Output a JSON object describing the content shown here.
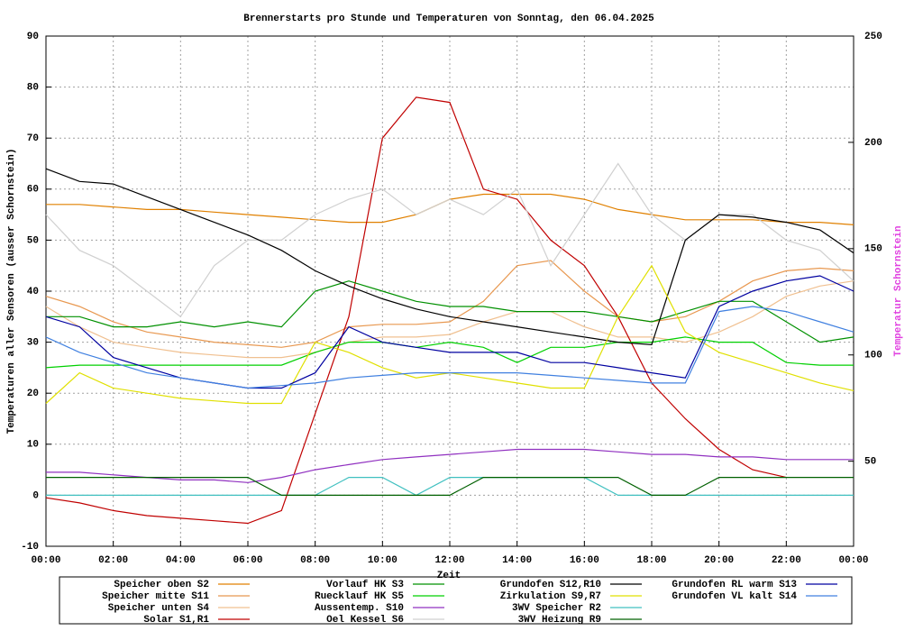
{
  "chart_data": {
    "type": "line",
    "title": "Brennerstarts pro Stunde und Temperaturen von Sonntag, den 06.04.2025",
    "xlabel": "Zeit",
    "ylabel": "Temperaturen aller Sensoren (ausser Schornstein)",
    "y2label": "Temperatur Schornstein",
    "x": [
      0,
      1,
      2,
      3,
      4,
      5,
      6,
      7,
      8,
      9,
      10,
      11,
      12,
      13,
      14,
      15,
      16,
      17,
      18,
      19,
      20,
      21,
      22,
      23,
      24
    ],
    "xlim": [
      0,
      24
    ],
    "xticks": [
      {
        "value": 0,
        "label": "00:00"
      },
      {
        "value": 2,
        "label": "02:00"
      },
      {
        "value": 4,
        "label": "04:00"
      },
      {
        "value": 6,
        "label": "06:00"
      },
      {
        "value": 8,
        "label": "08:00"
      },
      {
        "value": 10,
        "label": "10:00"
      },
      {
        "value": 12,
        "label": "12:00"
      },
      {
        "value": 14,
        "label": "14:00"
      },
      {
        "value": 16,
        "label": "16:00"
      },
      {
        "value": 18,
        "label": "18:00"
      },
      {
        "value": 20,
        "label": "20:00"
      },
      {
        "value": 22,
        "label": "22:00"
      },
      {
        "value": 24,
        "label": "00:00"
      }
    ],
    "ylim": [
      -10,
      90
    ],
    "yticks": [
      -10,
      0,
      10,
      20,
      30,
      40,
      50,
      60,
      70,
      80,
      90
    ],
    "y2lim": [
      10,
      250
    ],
    "y2ticks": [
      50,
      100,
      150,
      200,
      250
    ],
    "grid": true,
    "series": [
      {
        "name": "Speicher oben S2",
        "color": "#e08000",
        "values": [
          57,
          57,
          56.5,
          56,
          56,
          55.5,
          55,
          54.5,
          54,
          53.5,
          53.5,
          55,
          58,
          59,
          59,
          59,
          58,
          56,
          55,
          54,
          54,
          54,
          53.5,
          53.5,
          53
        ]
      },
      {
        "name": "Speicher mitte S11",
        "color": "#e89850",
        "values": [
          39,
          37,
          34,
          32,
          31,
          30,
          29.5,
          29,
          30,
          33,
          33.5,
          33.5,
          34,
          38,
          45,
          46,
          40,
          35,
          34,
          35,
          38,
          42,
          44,
          44.5,
          44
        ]
      },
      {
        "name": "Speicher unten S4",
        "color": "#f0c090",
        "values": [
          37,
          33,
          30,
          29,
          28,
          27.5,
          27,
          27,
          28,
          30,
          31,
          31,
          31.5,
          34,
          36,
          36,
          33,
          31,
          31,
          30,
          32,
          35,
          39,
          41,
          42
        ]
      },
      {
        "name": "Solar S1,R1",
        "color": "#c00000",
        "values": [
          -0.5,
          -1.5,
          -3,
          -4,
          -4.5,
          -5,
          -5.5,
          -3,
          16,
          35,
          70,
          78,
          77,
          60,
          58,
          50,
          45,
          35,
          22,
          15,
          9,
          5,
          3.5,
          null,
          null
        ]
      },
      {
        "name": "Vorlauf HK S3",
        "color": "#009000",
        "values": [
          35,
          35,
          33,
          33,
          34,
          33,
          34,
          33,
          40,
          42,
          40,
          38,
          37,
          37,
          36,
          36,
          36,
          35,
          34,
          36,
          38,
          38,
          34,
          30,
          31
        ]
      },
      {
        "name": "Ruecklauf HK S5",
        "color": "#00d000",
        "values": [
          25,
          25.5,
          25.5,
          25.5,
          25.5,
          25.5,
          25.5,
          25.5,
          28,
          30,
          30,
          29,
          30,
          29,
          26,
          29,
          29,
          30,
          30,
          31,
          30,
          30,
          26,
          25.5,
          25.5
        ]
      },
      {
        "name": "Aussentemp. S10",
        "color": "#9030c0",
        "values": [
          4.5,
          4.5,
          4,
          3.5,
          3,
          3,
          2.5,
          3.5,
          5,
          6,
          7,
          7.5,
          8,
          8.5,
          9,
          9,
          9,
          8.5,
          8,
          8,
          7.5,
          7.5,
          7,
          7,
          7
        ]
      },
      {
        "name": "Oel Kessel S6",
        "color": "#d0d0d0",
        "values": [
          55,
          48,
          45,
          40,
          35,
          45,
          50,
          50,
          55,
          58,
          60,
          55,
          58,
          55,
          60,
          45,
          55,
          65,
          55,
          50,
          55,
          55,
          50,
          48,
          42
        ]
      },
      {
        "name": "Grundofen S12,R10",
        "color": "#000000",
        "values": [
          64,
          61.5,
          61,
          58.5,
          56,
          53.5,
          51,
          48,
          44,
          41,
          38.5,
          36.5,
          35,
          34,
          33,
          32,
          31,
          30,
          29.5,
          50,
          55,
          54.5,
          53.5,
          52,
          47.5
        ]
      },
      {
        "name": "Zirkulation S9,R7",
        "color": "#e0e000",
        "values": [
          18,
          24,
          21,
          20,
          19,
          18.5,
          18,
          18,
          30,
          28,
          25,
          23,
          24,
          23,
          22,
          21,
          21,
          35,
          45,
          32,
          28,
          26,
          24,
          22,
          20.5
        ]
      },
      {
        "name": "3WV Speicher R2",
        "color": "#40c0c0",
        "values": [
          0,
          0,
          0,
          0,
          0,
          0,
          0,
          0,
          0,
          3.5,
          3.5,
          0,
          3.5,
          3.5,
          3.5,
          3.5,
          3.5,
          0,
          0,
          0,
          0,
          0,
          0,
          0,
          0
        ]
      },
      {
        "name": "3WV Heizung R9",
        "color": "#006000",
        "values": [
          3.5,
          3.5,
          3.5,
          3.5,
          3.5,
          3.5,
          3.5,
          0,
          0,
          0,
          0,
          0,
          0,
          3.5,
          3.5,
          3.5,
          3.5,
          3.5,
          0,
          0,
          3.5,
          3.5,
          3.5,
          3.5,
          3.5
        ]
      },
      {
        "name": "Grundofen RL warm S13",
        "color": "#0000a0",
        "values": [
          35,
          33,
          27,
          25,
          23,
          22,
          21,
          21,
          24,
          33,
          30,
          29,
          28,
          28,
          28,
          26,
          26,
          25,
          24,
          23,
          37,
          40,
          42,
          43,
          40
        ]
      },
      {
        "name": "Grundofen VL kalt S14",
        "color": "#4080e0",
        "values": [
          31,
          28,
          26,
          24,
          23,
          22,
          21,
          21.5,
          22,
          23,
          23.5,
          24,
          24,
          24,
          24,
          23.5,
          23,
          22.5,
          22,
          22,
          36,
          37,
          36,
          34,
          32
        ]
      }
    ]
  }
}
